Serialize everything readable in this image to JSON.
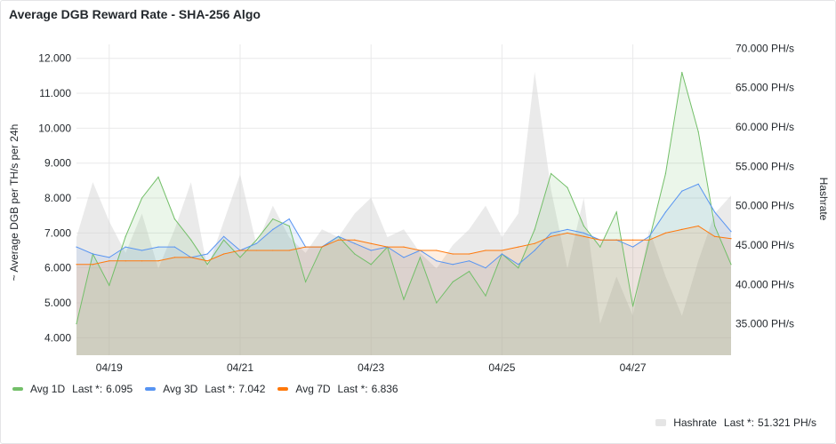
{
  "panel": {
    "title": "Average DGB Reward Rate - SHA-256 Algo"
  },
  "chart_data": {
    "type": "line",
    "title": "Average DGB Reward Rate - SHA-256 Algo",
    "ylabel": "~ Average DGB per TH/s per 24h",
    "y2label": "Hashrate",
    "x_ticks": [
      "04/19",
      "04/21",
      "04/23",
      "04/25",
      "04/27"
    ],
    "x_range": [
      "04/18 12:00",
      "04/28 12:00"
    ],
    "ylim": [
      3.5,
      12.4
    ],
    "y_ticks": [
      "4.000",
      "5.000",
      "6.000",
      "7.000",
      "8.000",
      "9.000",
      "10.000",
      "11.000",
      "12.000"
    ],
    "y2lim": [
      31,
      70.5
    ],
    "y2_ticks": [
      "35.000 PH/s",
      "40.000 PH/s",
      "45.000 PH/s",
      "50.000 PH/s",
      "55.000 PH/s",
      "60.000 PH/s",
      "65.000 PH/s",
      "70.000 PH/s"
    ],
    "grid": true,
    "legend_placement": "bottom",
    "x": [
      "04/18 12:00",
      "04/18 18:00",
      "04/19 00:00",
      "04/19 06:00",
      "04/19 12:00",
      "04/19 18:00",
      "04/20 00:00",
      "04/20 06:00",
      "04/20 12:00",
      "04/20 18:00",
      "04/21 00:00",
      "04/21 06:00",
      "04/21 12:00",
      "04/21 18:00",
      "04/22 00:00",
      "04/22 06:00",
      "04/22 12:00",
      "04/22 18:00",
      "04/23 00:00",
      "04/23 06:00",
      "04/23 12:00",
      "04/23 18:00",
      "04/24 00:00",
      "04/24 06:00",
      "04/24 12:00",
      "04/24 18:00",
      "04/25 00:00",
      "04/25 06:00",
      "04/25 12:00",
      "04/25 18:00",
      "04/26 00:00",
      "04/26 06:00",
      "04/26 12:00",
      "04/26 18:00",
      "04/27 00:00",
      "04/27 06:00",
      "04/27 12:00",
      "04/27 18:00",
      "04/28 00:00",
      "04/28 06:00",
      "04/28 12:00"
    ],
    "series": [
      {
        "name": "Avg 1D",
        "axis": "left",
        "color": "#73bf69",
        "last": "6.095",
        "values": [
          4.4,
          6.4,
          5.5,
          6.9,
          8.0,
          8.6,
          7.4,
          6.8,
          6.1,
          6.8,
          6.3,
          6.8,
          7.4,
          7.2,
          5.6,
          6.6,
          6.9,
          6.4,
          6.1,
          6.6,
          5.1,
          6.3,
          5.0,
          5.6,
          5.9,
          5.2,
          6.4,
          6.0,
          7.1,
          8.7,
          8.3,
          7.2,
          6.6,
          7.6,
          4.9,
          6.8,
          8.7,
          11.6,
          9.9,
          7.2,
          6.1
        ]
      },
      {
        "name": "Avg 3D",
        "axis": "left",
        "color": "#5794f2",
        "last": "7.042",
        "values": [
          6.6,
          6.4,
          6.3,
          6.6,
          6.5,
          6.6,
          6.6,
          6.3,
          6.4,
          6.9,
          6.5,
          6.7,
          7.1,
          7.4,
          6.6,
          6.6,
          6.9,
          6.7,
          6.5,
          6.6,
          6.3,
          6.5,
          6.2,
          6.1,
          6.2,
          6.0,
          6.4,
          6.1,
          6.5,
          7.0,
          7.1,
          7.0,
          6.8,
          6.8,
          6.6,
          6.9,
          7.6,
          8.2,
          8.4,
          7.6,
          7.04
        ]
      },
      {
        "name": "Avg 7D",
        "axis": "left",
        "color": "#ff780a",
        "last": "6.836",
        "values": [
          6.1,
          6.1,
          6.2,
          6.2,
          6.2,
          6.2,
          6.3,
          6.3,
          6.2,
          6.4,
          6.5,
          6.5,
          6.5,
          6.5,
          6.6,
          6.6,
          6.8,
          6.8,
          6.7,
          6.6,
          6.6,
          6.5,
          6.5,
          6.4,
          6.4,
          6.5,
          6.5,
          6.6,
          6.7,
          6.9,
          7.0,
          6.9,
          6.8,
          6.8,
          6.8,
          6.8,
          7.0,
          7.1,
          7.2,
          6.9,
          6.84
        ]
      },
      {
        "name": "Hashrate",
        "axis": "right",
        "color": "#d0d0d0",
        "last": "51.321 PH/s",
        "values": [
          46,
          53,
          48,
          44,
          49,
          42,
          47,
          53,
          42,
          48,
          54,
          45,
          50,
          46,
          44,
          47,
          46,
          49,
          51,
          46,
          47,
          44,
          42,
          45,
          47,
          50,
          46,
          49,
          67,
          52,
          42,
          51,
          35,
          41,
          36,
          47,
          41,
          36,
          43,
          49,
          51.3
        ]
      }
    ]
  },
  "legend": {
    "items": [
      {
        "name": "Avg 1D",
        "label": "Last *:",
        "value": "6.095",
        "color": "#73bf69"
      },
      {
        "name": "Avg 3D",
        "label": "Last *:",
        "value": "7.042",
        "color": "#5794f2"
      },
      {
        "name": "Avg 7D",
        "label": "Last *:",
        "value": "6.836",
        "color": "#ff780a"
      }
    ],
    "hashrate": {
      "name": "Hashrate",
      "label": "Last *:",
      "value": "51.321 PH/s",
      "color": "#e5e5e5"
    }
  }
}
